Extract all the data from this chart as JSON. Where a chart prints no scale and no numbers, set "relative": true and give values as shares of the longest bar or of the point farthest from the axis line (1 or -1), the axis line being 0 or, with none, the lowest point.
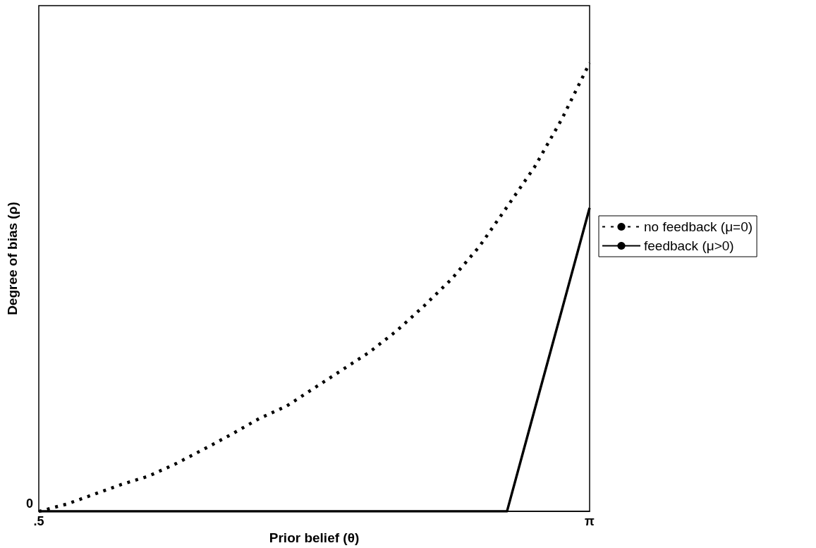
{
  "chart_data": {
    "type": "line",
    "relative": true,
    "xlabel": "Prior belief (θ)",
    "ylabel": "Degree of bias (ρ)",
    "categories": [
      ".5",
      null,
      null,
      null,
      null,
      null,
      null,
      null,
      null,
      null,
      null,
      null,
      null,
      null,
      null,
      null,
      null,
      null,
      null,
      null,
      "π"
    ],
    "series": [
      {
        "name": "no feedback (μ=0)",
        "color": "#000000",
        "line_style": "dashed",
        "values": [
          0,
          0.016,
          0.038,
          0.06,
          0.079,
          0.107,
          0.139,
          0.172,
          0.207,
          0.235,
          0.275,
          0.315,
          0.355,
          0.403,
          0.459,
          0.519,
          0.591,
          0.679,
          0.768,
          0.876,
          1
        ]
      },
      {
        "name": "feedback (μ>0)",
        "color": "#000000",
        "line_style": "solid",
        "values": [
          0,
          0,
          0,
          0,
          0,
          0,
          0,
          0,
          0,
          0,
          0,
          0,
          0,
          0,
          0,
          0,
          0,
          0,
          0.226,
          0.451,
          0.677
        ]
      }
    ],
    "annotations": [
      {
        "text": "0",
        "x": ".5",
        "y": 0
      }
    ],
    "marker": "none",
    "grid": false,
    "legend": "right"
  }
}
